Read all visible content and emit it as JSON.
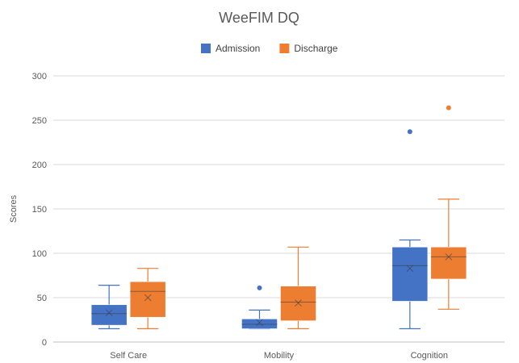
{
  "chart_data": {
    "type": "box",
    "title": "WeeFIM DQ",
    "ylabel": "Scores",
    "xlabel": "",
    "ylim": [
      0,
      300
    ],
    "yticks": [
      0,
      50,
      100,
      150,
      200,
      250,
      300
    ],
    "categories": [
      "Self Care",
      "Mobility",
      "Cognition"
    ],
    "legend_position": "top",
    "grid": true,
    "series": [
      {
        "name": "Admission",
        "color": "#4472C4",
        "boxes": [
          {
            "min": 15,
            "q1": 19,
            "median": 32,
            "q3": 42,
            "max": 64,
            "mean": 33,
            "outliers": []
          },
          {
            "min": 15,
            "q1": 15,
            "median": 20,
            "q3": 26,
            "max": 36,
            "mean": 22,
            "outliers": [
              61
            ]
          },
          {
            "min": 15,
            "q1": 46,
            "median": 86,
            "q3": 107,
            "max": 115,
            "mean": 83,
            "outliers": [
              237
            ]
          }
        ]
      },
      {
        "name": "Discharge",
        "color": "#ED7D31",
        "boxes": [
          {
            "min": 15,
            "q1": 28,
            "median": 57,
            "q3": 68,
            "max": 83,
            "mean": 50,
            "outliers": []
          },
          {
            "min": 15,
            "q1": 24,
            "median": 45,
            "q3": 63,
            "max": 107,
            "mean": 44,
            "outliers": []
          },
          {
            "min": 37,
            "q1": 71,
            "median": 96,
            "q3": 107,
            "max": 161,
            "mean": 96,
            "outliers": [
              264
            ]
          }
        ]
      }
    ]
  }
}
